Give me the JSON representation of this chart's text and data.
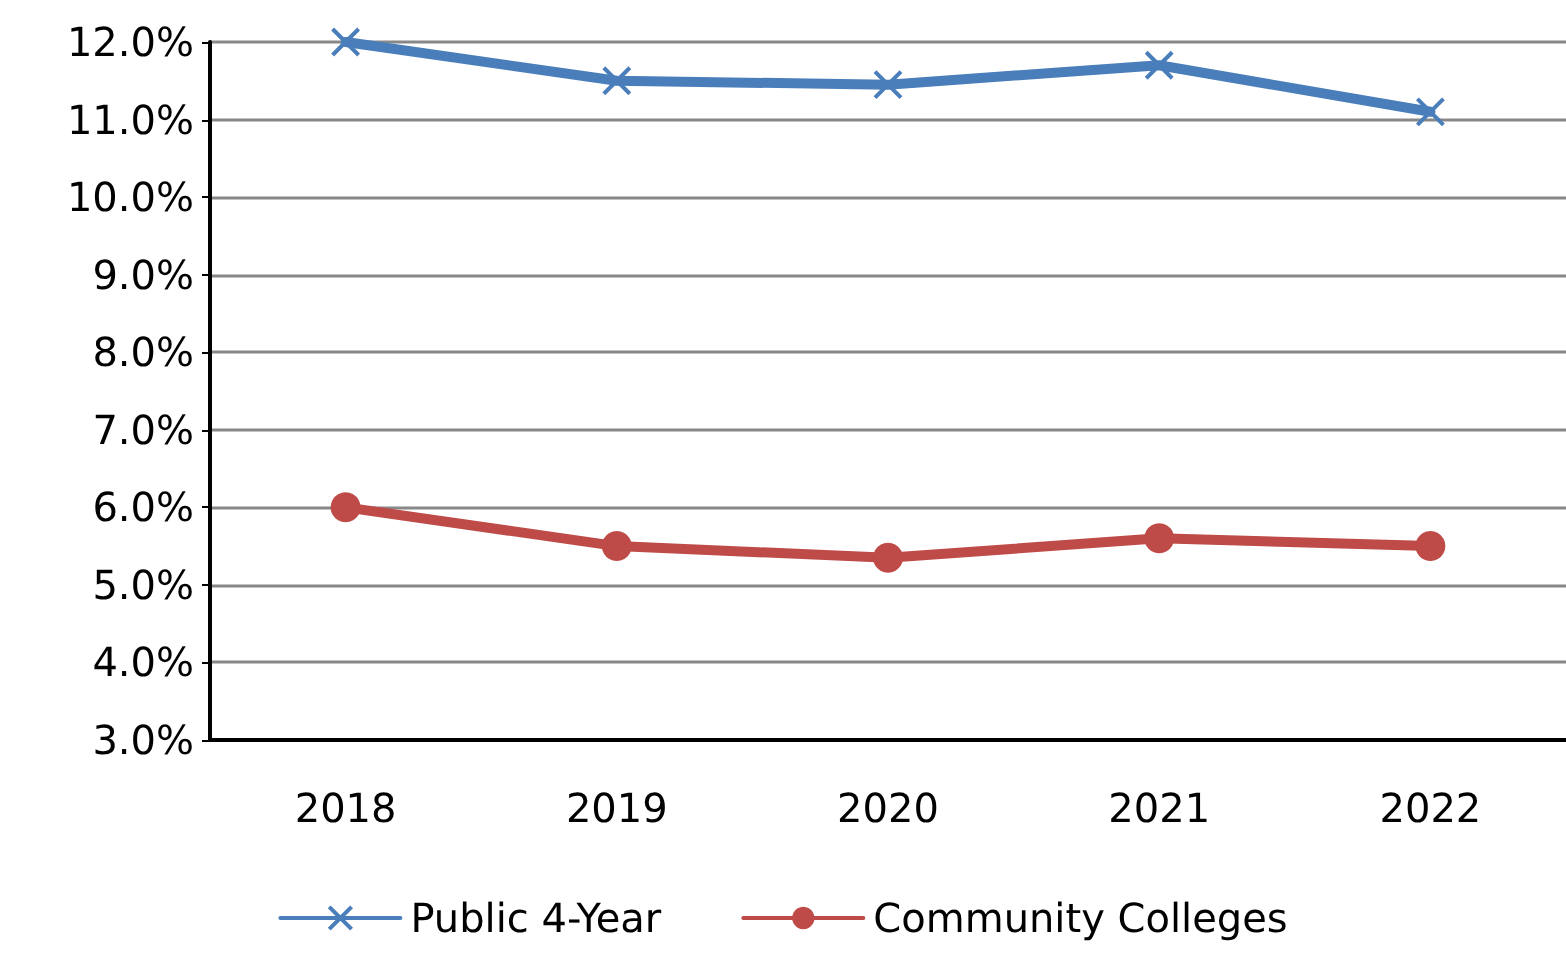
{
  "chart_data": {
    "type": "line",
    "categories": [
      "2018",
      "2019",
      "2020",
      "2021",
      "2022"
    ],
    "series": [
      {
        "name": "Public 4-Year",
        "color": "#4a7ebb",
        "marker": "cross",
        "values": [
          12.0,
          11.5,
          11.45,
          11.7,
          11.1
        ]
      },
      {
        "name": "Community Colleges",
        "color": "#be4b48",
        "marker": "circle",
        "values": [
          6.0,
          5.5,
          5.35,
          5.6,
          5.5
        ]
      }
    ],
    "ylim": [
      3,
      12
    ],
    "yticks": [
      {
        "value": 3,
        "label": "3.0%"
      },
      {
        "value": 4,
        "label": "4.0%"
      },
      {
        "value": 5,
        "label": "5.0%"
      },
      {
        "value": 6,
        "label": "6.0%"
      },
      {
        "value": 7,
        "label": "7.0%"
      },
      {
        "value": 8,
        "label": "8.0%"
      },
      {
        "value": 9,
        "label": "9.0%"
      },
      {
        "value": 10,
        "label": "10.0%"
      },
      {
        "value": 11,
        "label": "11.0%"
      },
      {
        "value": 12,
        "label": "12.0%"
      }
    ],
    "grid": "y",
    "legend": "bottom",
    "line_style": "solid"
  }
}
